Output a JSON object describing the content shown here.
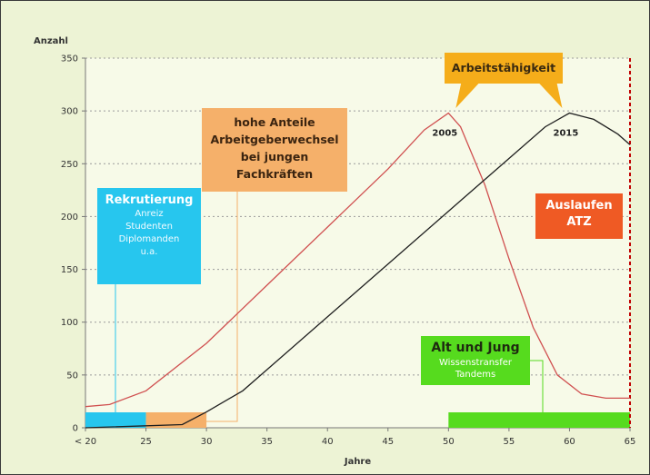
{
  "chart_data": {
    "type": "line",
    "ylabel": "Anzahl",
    "xlabel": "Jahre",
    "x_ticks": [
      "< 20",
      "25",
      "30",
      "35",
      "40",
      "45",
      "50",
      "55",
      "60",
      "65"
    ],
    "y_ticks": [
      0,
      50,
      100,
      150,
      200,
      250,
      300,
      350
    ],
    "ylim": [
      0,
      350
    ],
    "grid": "horizontal dashed",
    "series": [
      {
        "color": "#d05050",
        "points": [
          [
            20,
            20
          ],
          [
            22,
            22
          ],
          [
            25,
            35
          ],
          [
            30,
            80
          ],
          [
            35,
            135
          ],
          [
            40,
            190
          ],
          [
            45,
            245
          ],
          [
            48,
            282
          ],
          [
            50,
            298
          ],
          [
            51,
            285
          ],
          [
            53,
            230
          ],
          [
            55,
            160
          ],
          [
            57,
            95
          ],
          [
            59,
            50
          ],
          [
            61,
            32
          ],
          [
            63,
            28
          ],
          [
            65,
            28
          ]
        ]
      },
      {
        "color": "#202020",
        "points": [
          [
            20,
            0
          ],
          [
            28,
            3
          ],
          [
            30,
            15
          ],
          [
            33,
            35
          ],
          [
            35,
            55
          ],
          [
            40,
            105
          ],
          [
            45,
            155
          ],
          [
            50,
            205
          ],
          [
            55,
            255
          ],
          [
            58,
            285
          ],
          [
            60,
            298
          ],
          [
            62,
            292
          ],
          [
            64,
            278
          ],
          [
            65,
            268
          ]
        ]
      }
    ],
    "annotations": [
      {
        "text": "2005",
        "x": 50,
        "y": 298
      },
      {
        "text": "2015",
        "x": 60,
        "y": 298
      }
    ],
    "bars_bottom": [
      {
        "from": 20,
        "to": 25,
        "color": "#27c6ee"
      },
      {
        "from": 25,
        "to": 30,
        "color": "#f5b06a"
      },
      {
        "from": 50,
        "to": 65,
        "color": "#56db1e"
      }
    ],
    "vline": {
      "x": 65,
      "color": "#c00000"
    }
  },
  "labels": {
    "arbeitsfaehigkeit": "Arbeitstähigkeit",
    "recruit_title": "Rekrutierung",
    "recruit_lines": [
      "Anreiz",
      "Studenten",
      "Diplomanden",
      "u.a."
    ],
    "change_lines": [
      "hohe Anteile",
      "Arbeitgeberwechsel",
      "bei jungen",
      "Fachkräften"
    ],
    "atz_lines": [
      "Auslaufen",
      "ATZ"
    ],
    "aj_title": "Alt und Jung",
    "aj_lines": [
      "Wissenstransfer",
      "Tandems"
    ]
  }
}
